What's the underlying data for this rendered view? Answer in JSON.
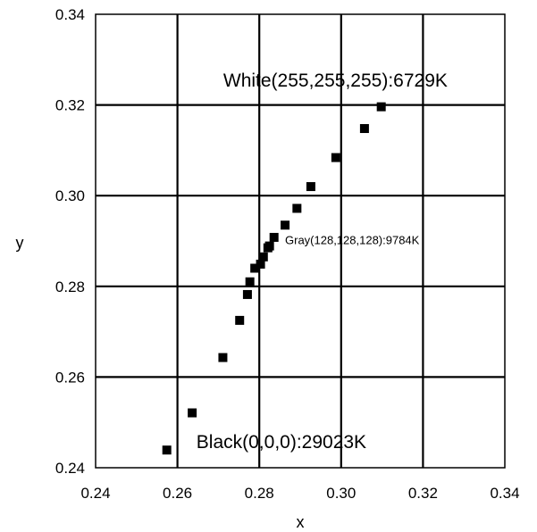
{
  "chart_data": {
    "type": "scatter",
    "title": "",
    "xlabel": "x",
    "ylabel": "y",
    "xlim": [
      0.24,
      0.34
    ],
    "ylim": [
      0.24,
      0.34
    ],
    "xticks": [
      "0.24",
      "0.26",
      "0.28",
      "0.30",
      "0.32",
      "0.34"
    ],
    "yticks": [
      "0.24",
      "0.26",
      "0.28",
      "0.30",
      "0.32",
      "0.34"
    ],
    "grid": true,
    "marker_color": "#000000",
    "points": [
      {
        "x": 0.2574,
        "y": 0.2439
      },
      {
        "x": 0.2636,
        "y": 0.2521
      },
      {
        "x": 0.2711,
        "y": 0.2643
      },
      {
        "x": 0.2752,
        "y": 0.2725
      },
      {
        "x": 0.2771,
        "y": 0.2782
      },
      {
        "x": 0.2777,
        "y": 0.281
      },
      {
        "x": 0.2789,
        "y": 0.284
      },
      {
        "x": 0.2803,
        "y": 0.2849
      },
      {
        "x": 0.281,
        "y": 0.2865
      },
      {
        "x": 0.2821,
        "y": 0.2885
      },
      {
        "x": 0.2825,
        "y": 0.2889
      },
      {
        "x": 0.2836,
        "y": 0.2908
      },
      {
        "x": 0.2863,
        "y": 0.2935
      },
      {
        "x": 0.2892,
        "y": 0.2972
      },
      {
        "x": 0.2926,
        "y": 0.302
      },
      {
        "x": 0.2987,
        "y": 0.3084
      },
      {
        "x": 0.3057,
        "y": 0.3148
      },
      {
        "x": 0.3098,
        "y": 0.3196
      }
    ],
    "annotations": [
      {
        "text": "White(255,255,255):6729K",
        "x": 0.2986,
        "y": 0.3241,
        "size": "large"
      },
      {
        "text": "Gray(128,128,128):9784K",
        "x": 0.3027,
        "y": 0.2893,
        "size": "small"
      },
      {
        "text": "Black(0,0,0):29023K",
        "x": 0.2854,
        "y": 0.2443,
        "size": "large"
      }
    ]
  }
}
